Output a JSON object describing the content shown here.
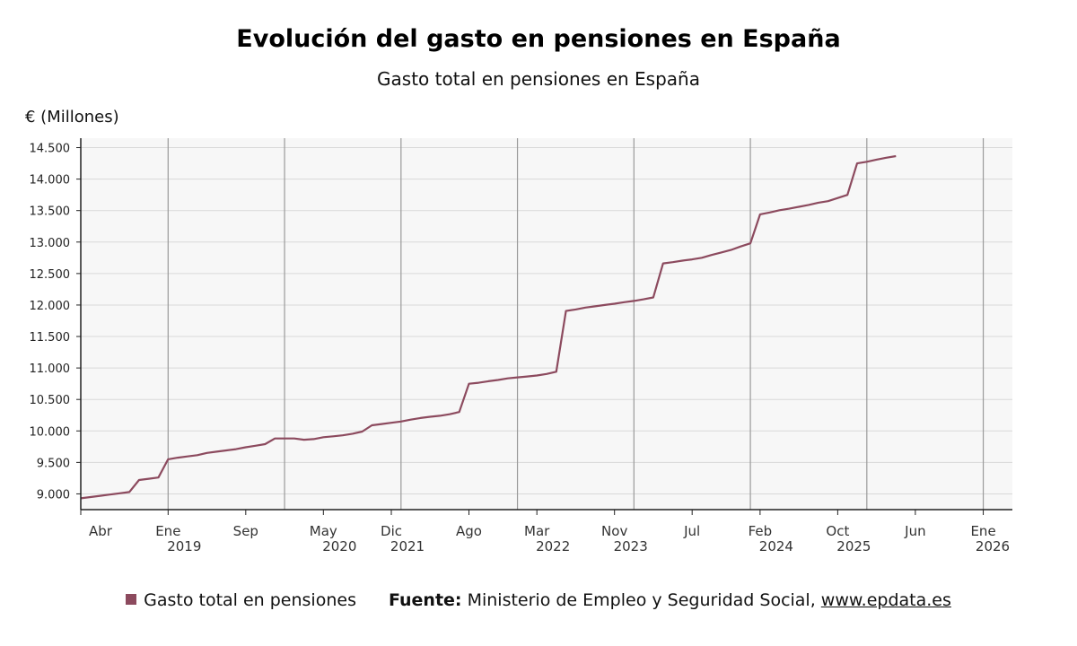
{
  "title": "Evolución del gasto en pensiones en España",
  "subtitle": "Gasto total en pensiones en España",
  "colors": {
    "line": "#8c4a5e",
    "plot_bg": "#f7f7f7",
    "grid": "#d9d9d9",
    "vgrid": "#9a9a9a",
    "axis": "#222222"
  },
  "legend": {
    "label": "Gasto total en pensiones"
  },
  "footer": {
    "source_label": "Fuente:",
    "source_text": " Ministerio de Empleo y Seguridad Social, ",
    "link": "www.epdata.es"
  },
  "chart_data": {
    "type": "line",
    "ylabel": "€ (Millones)",
    "ylim": [
      8750,
      14650
    ],
    "yticks": [
      9000,
      9500,
      10000,
      10500,
      11000,
      11500,
      12000,
      12500,
      13000,
      13500,
      14000,
      14500
    ],
    "ytick_labels": [
      "9.000",
      "9.500",
      "10.000",
      "10.500",
      "11.000",
      "11.500",
      "12.000",
      "12.500",
      "13.000",
      "13.500",
      "14.000",
      "14.500"
    ],
    "xlim": [
      "2018-04",
      "2026-04"
    ],
    "xticks": [
      {
        "date": "2018-04",
        "label": "Abr",
        "year": ""
      },
      {
        "date": "2019-01",
        "label": "Ene",
        "year": "2019"
      },
      {
        "date": "2019-09",
        "label": "Sep",
        "year": ""
      },
      {
        "date": "2020-05",
        "label": "May",
        "year": "2020"
      },
      {
        "date": "2020-12",
        "label": "Dic",
        "year": "2021"
      },
      {
        "date": "2021-08",
        "label": "Ago",
        "year": ""
      },
      {
        "date": "2022-03",
        "label": "Mar",
        "year": "2022"
      },
      {
        "date": "2022-11",
        "label": "Nov",
        "year": "2023"
      },
      {
        "date": "2023-07",
        "label": "Jul",
        "year": ""
      },
      {
        "date": "2024-02",
        "label": "Feb",
        "year": "2024"
      },
      {
        "date": "2024-10",
        "label": "Oct",
        "year": "2025"
      },
      {
        "date": "2025-06",
        "label": "Jun",
        "year": ""
      },
      {
        "date": "2026-01",
        "label": "Ene",
        "year": "2026"
      }
    ],
    "vgrid_dates": [
      "2019-01",
      "2020-01",
      "2021-01",
      "2022-01",
      "2023-01",
      "2024-01",
      "2025-01",
      "2026-01"
    ],
    "grid": true,
    "legend_position": "bottom",
    "series": [
      {
        "name": "Gasto total en pensiones",
        "points": [
          [
            "2018-04",
            8930
          ],
          [
            "2018-05",
            8950
          ],
          [
            "2018-06",
            8970
          ],
          [
            "2018-07",
            8990
          ],
          [
            "2018-08",
            9010
          ],
          [
            "2018-09",
            9030
          ],
          [
            "2018-10",
            9220
          ],
          [
            "2018-11",
            9240
          ],
          [
            "2018-12",
            9260
          ],
          [
            "2019-01",
            9550
          ],
          [
            "2019-02",
            9575
          ],
          [
            "2019-03",
            9595
          ],
          [
            "2019-04",
            9615
          ],
          [
            "2019-05",
            9650
          ],
          [
            "2019-06",
            9670
          ],
          [
            "2019-07",
            9690
          ],
          [
            "2019-08",
            9710
          ],
          [
            "2019-09",
            9740
          ],
          [
            "2019-10",
            9765
          ],
          [
            "2019-11",
            9790
          ],
          [
            "2019-12",
            9880
          ],
          [
            "2020-01",
            9880
          ],
          [
            "2020-02",
            9880
          ],
          [
            "2020-03",
            9860
          ],
          [
            "2020-04",
            9870
          ],
          [
            "2020-05",
            9900
          ],
          [
            "2020-06",
            9915
          ],
          [
            "2020-07",
            9930
          ],
          [
            "2020-08",
            9955
          ],
          [
            "2020-09",
            9990
          ],
          [
            "2020-10",
            10090
          ],
          [
            "2020-11",
            10110
          ],
          [
            "2020-12",
            10130
          ],
          [
            "2021-01",
            10150
          ],
          [
            "2021-02",
            10180
          ],
          [
            "2021-03",
            10205
          ],
          [
            "2021-04",
            10225
          ],
          [
            "2021-05",
            10240
          ],
          [
            "2021-06",
            10265
          ],
          [
            "2021-07",
            10300
          ],
          [
            "2021-08",
            10750
          ],
          [
            "2021-09",
            10765
          ],
          [
            "2021-10",
            10790
          ],
          [
            "2021-11",
            10810
          ],
          [
            "2021-12",
            10835
          ],
          [
            "2022-01",
            10850
          ],
          [
            "2022-02",
            10865
          ],
          [
            "2022-03",
            10880
          ],
          [
            "2022-04",
            10905
          ],
          [
            "2022-05",
            10940
          ],
          [
            "2022-06",
            11905
          ],
          [
            "2022-07",
            11930
          ],
          [
            "2022-08",
            11960
          ],
          [
            "2022-09",
            11980
          ],
          [
            "2022-10",
            12000
          ],
          [
            "2022-11",
            12020
          ],
          [
            "2022-12",
            12045
          ],
          [
            "2023-01",
            12065
          ],
          [
            "2023-02",
            12090
          ],
          [
            "2023-03",
            12120
          ],
          [
            "2023-04",
            12660
          ],
          [
            "2023-05",
            12680
          ],
          [
            "2023-06",
            12705
          ],
          [
            "2023-07",
            12725
          ],
          [
            "2023-08",
            12750
          ],
          [
            "2023-09",
            12795
          ],
          [
            "2023-10",
            12835
          ],
          [
            "2023-11",
            12875
          ],
          [
            "2023-12",
            12930
          ],
          [
            "2024-01",
            12980
          ],
          [
            "2024-02",
            13440
          ],
          [
            "2024-03",
            13470
          ],
          [
            "2024-04",
            13505
          ],
          [
            "2024-05",
            13530
          ],
          [
            "2024-06",
            13560
          ],
          [
            "2024-07",
            13590
          ],
          [
            "2024-08",
            13625
          ],
          [
            "2024-09",
            13650
          ],
          [
            "2024-10",
            13700
          ],
          [
            "2024-11",
            13750
          ],
          [
            "2024-12",
            14250
          ],
          [
            "2025-01",
            14275
          ],
          [
            "2025-02",
            14310
          ],
          [
            "2025-03",
            14340
          ],
          [
            "2025-04",
            14365
          ]
        ]
      }
    ]
  }
}
